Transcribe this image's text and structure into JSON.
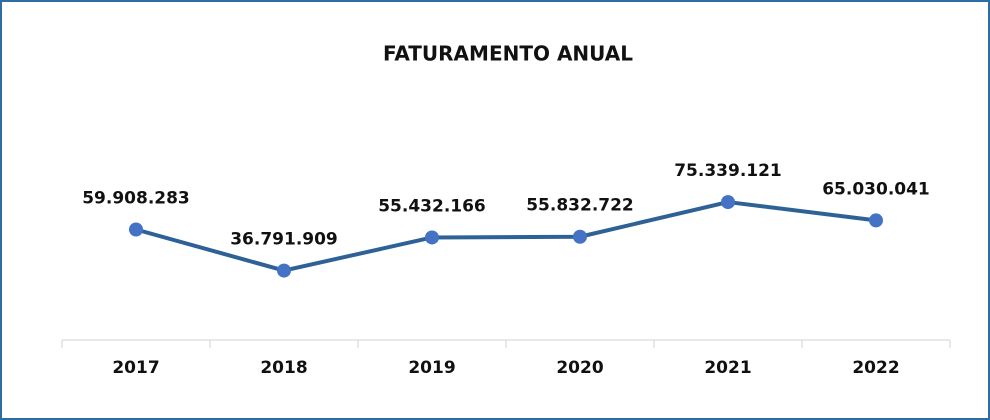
{
  "chart_data": {
    "type": "line",
    "title": "FATURAMENTO ANUAL",
    "categories": [
      "2017",
      "2018",
      "2019",
      "2020",
      "2021",
      "2022"
    ],
    "values": [
      59908283,
      36791909,
      55432166,
      55832722,
      75339121,
      65030041
    ],
    "value_labels": [
      "59.908.283",
      "36.791.909",
      "55.432.166",
      "55.832.722",
      "75.339.121",
      "65.030.041"
    ],
    "color": "#2e6196",
    "marker_color": "#4472c4",
    "ylim": [
      0,
      90000000
    ]
  }
}
